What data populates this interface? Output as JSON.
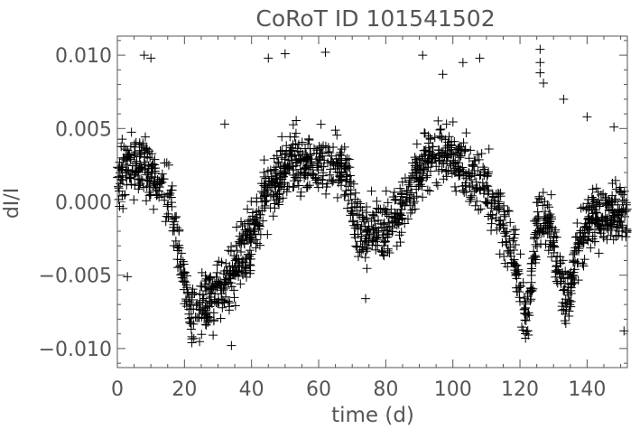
{
  "chart_data": {
    "type": "scatter",
    "title": "CoRoT ID 101541502",
    "xlabel": "time (d)",
    "ylabel": "dI/I",
    "xlim": [
      0,
      152
    ],
    "ylim": [
      -0.0113,
      0.0113
    ],
    "x_ticks": [
      0,
      20,
      40,
      60,
      80,
      100,
      120,
      140
    ],
    "x_tick_labels": [
      "0",
      "20",
      "40",
      "60",
      "80",
      "100",
      "120",
      "140"
    ],
    "y_ticks": [
      -0.01,
      -0.005,
      0.0,
      0.005,
      0.01
    ],
    "y_tick_labels": [
      "−0.010",
      "−0.005",
      "0.000",
      "0.005",
      "0.010"
    ],
    "grid": false,
    "legend": "none",
    "marker": "plus",
    "marker_color": "#000000",
    "trend": [
      {
        "x": 0,
        "y": 0.0018
      },
      {
        "x": 4,
        "y": 0.0022
      },
      {
        "x": 8,
        "y": 0.0026
      },
      {
        "x": 12,
        "y": 0.0012
      },
      {
        "x": 16,
        "y": 0.0002
      },
      {
        "x": 19,
        "y": -0.004
      },
      {
        "x": 22,
        "y": -0.0082
      },
      {
        "x": 25,
        "y": -0.0075
      },
      {
        "x": 28,
        "y": -0.0065
      },
      {
        "x": 32,
        "y": -0.006
      },
      {
        "x": 36,
        "y": -0.004
      },
      {
        "x": 40,
        "y": -0.0022
      },
      {
        "x": 44,
        "y": 0.0
      },
      {
        "x": 48,
        "y": 0.0018
      },
      {
        "x": 52,
        "y": 0.003
      },
      {
        "x": 56,
        "y": 0.0025
      },
      {
        "x": 60,
        "y": 0.0028
      },
      {
        "x": 64,
        "y": 0.0024
      },
      {
        "x": 68,
        "y": 0.0022
      },
      {
        "x": 71,
        "y": -0.0018
      },
      {
        "x": 75,
        "y": -0.0022
      },
      {
        "x": 80,
        "y": -0.0018
      },
      {
        "x": 85,
        "y": -0.0005
      },
      {
        "x": 90,
        "y": 0.0022
      },
      {
        "x": 95,
        "y": 0.0035
      },
      {
        "x": 100,
        "y": 0.003
      },
      {
        "x": 105,
        "y": 0.0015
      },
      {
        "x": 110,
        "y": 0.0012
      },
      {
        "x": 114,
        "y": -0.001
      },
      {
        "x": 118,
        "y": -0.003
      },
      {
        "x": 122,
        "y": -0.0085
      },
      {
        "x": 125,
        "y": -0.0015
      },
      {
        "x": 128,
        "y": -0.0005
      },
      {
        "x": 131,
        "y": -0.004
      },
      {
        "x": 134,
        "y": -0.007
      },
      {
        "x": 137,
        "y": -0.003
      },
      {
        "x": 141,
        "y": -0.001
      },
      {
        "x": 146,
        "y": -0.0008
      },
      {
        "x": 152,
        "y": -0.001
      }
    ],
    "scatter_halfwidth": 0.0022,
    "sample_points": 1800,
    "outliers": [
      {
        "x": 3,
        "y": -0.0051
      },
      {
        "x": 8,
        "y": 0.01
      },
      {
        "x": 10,
        "y": 0.0098
      },
      {
        "x": 32,
        "y": 0.0053
      },
      {
        "x": 34,
        "y": -0.0098
      },
      {
        "x": 45,
        "y": 0.0098
      },
      {
        "x": 50,
        "y": 0.0101
      },
      {
        "x": 62,
        "y": 0.0102
      },
      {
        "x": 74,
        "y": -0.0066
      },
      {
        "x": 91,
        "y": 0.01
      },
      {
        "x": 97,
        "y": 0.0087
      },
      {
        "x": 103,
        "y": 0.0095
      },
      {
        "x": 108,
        "y": 0.0098
      },
      {
        "x": 126,
        "y": 0.0104
      },
      {
        "x": 126,
        "y": 0.0095
      },
      {
        "x": 126,
        "y": 0.0088
      },
      {
        "x": 127,
        "y": 0.0081
      },
      {
        "x": 133,
        "y": 0.007
      },
      {
        "x": 140,
        "y": 0.0058
      },
      {
        "x": 148,
        "y": 0.0051
      },
      {
        "x": 151,
        "y": -0.0088
      }
    ]
  }
}
